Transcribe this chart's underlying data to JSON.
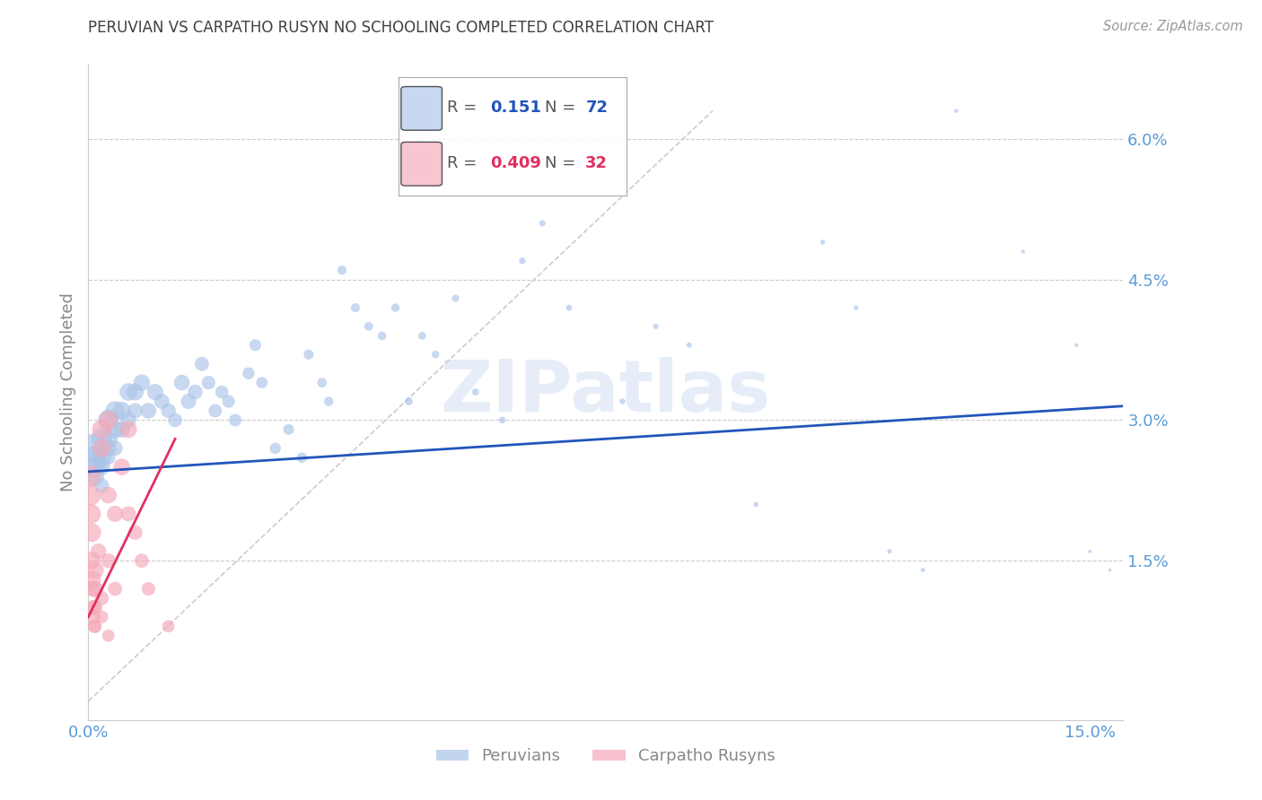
{
  "title": "PERUVIAN VS CARPATHO RUSYN NO SCHOOLING COMPLETED CORRELATION CHART",
  "source": "Source: ZipAtlas.com",
  "ylabel": "No Schooling Completed",
  "watermark": "ZIPatlas",
  "xlim": [
    0.0,
    0.155
  ],
  "ylim": [
    -0.002,
    0.068
  ],
  "blue_R": 0.151,
  "blue_N": 72,
  "pink_R": 0.409,
  "pink_N": 32,
  "blue_color": "#aac4e8",
  "pink_color": "#f4a8b8",
  "blue_line_color": "#2255bb",
  "pink_line_color": "#e03060",
  "dashed_line_color": "#cccccc",
  "grid_color": "#cccccc",
  "title_color": "#404040",
  "axis_label_color": "#888888",
  "tick_label_color": "#5b9bd5",
  "blue_line_x": [
    0.0,
    0.155
  ],
  "blue_line_y": [
    0.0245,
    0.0315
  ],
  "pink_line_x": [
    0.0,
    0.013
  ],
  "pink_line_y": [
    0.009,
    0.028
  ],
  "dash_line_x": [
    0.0,
    0.0935
  ],
  "dash_line_y": [
    0.0,
    0.063
  ],
  "blue_points": [
    [
      0.0005,
      0.027
    ],
    [
      0.001,
      0.026
    ],
    [
      0.001,
      0.025
    ],
    [
      0.001,
      0.024
    ],
    [
      0.002,
      0.028
    ],
    [
      0.002,
      0.026
    ],
    [
      0.002,
      0.025
    ],
    [
      0.002,
      0.023
    ],
    [
      0.003,
      0.03
    ],
    [
      0.003,
      0.028
    ],
    [
      0.003,
      0.027
    ],
    [
      0.003,
      0.026
    ],
    [
      0.004,
      0.031
    ],
    [
      0.004,
      0.029
    ],
    [
      0.004,
      0.027
    ],
    [
      0.005,
      0.031
    ],
    [
      0.005,
      0.029
    ],
    [
      0.006,
      0.033
    ],
    [
      0.006,
      0.03
    ],
    [
      0.007,
      0.033
    ],
    [
      0.007,
      0.031
    ],
    [
      0.008,
      0.034
    ],
    [
      0.009,
      0.031
    ],
    [
      0.01,
      0.033
    ],
    [
      0.011,
      0.032
    ],
    [
      0.012,
      0.031
    ],
    [
      0.013,
      0.03
    ],
    [
      0.014,
      0.034
    ],
    [
      0.015,
      0.032
    ],
    [
      0.016,
      0.033
    ],
    [
      0.017,
      0.036
    ],
    [
      0.018,
      0.034
    ],
    [
      0.019,
      0.031
    ],
    [
      0.02,
      0.033
    ],
    [
      0.021,
      0.032
    ],
    [
      0.022,
      0.03
    ],
    [
      0.024,
      0.035
    ],
    [
      0.025,
      0.038
    ],
    [
      0.026,
      0.034
    ],
    [
      0.028,
      0.027
    ],
    [
      0.03,
      0.029
    ],
    [
      0.032,
      0.026
    ],
    [
      0.033,
      0.037
    ],
    [
      0.035,
      0.034
    ],
    [
      0.036,
      0.032
    ],
    [
      0.038,
      0.046
    ],
    [
      0.04,
      0.042
    ],
    [
      0.042,
      0.04
    ],
    [
      0.044,
      0.039
    ],
    [
      0.046,
      0.042
    ],
    [
      0.048,
      0.032
    ],
    [
      0.05,
      0.039
    ],
    [
      0.052,
      0.037
    ],
    [
      0.055,
      0.043
    ],
    [
      0.058,
      0.033
    ],
    [
      0.062,
      0.03
    ],
    [
      0.065,
      0.047
    ],
    [
      0.068,
      0.051
    ],
    [
      0.072,
      0.042
    ],
    [
      0.08,
      0.032
    ],
    [
      0.085,
      0.04
    ],
    [
      0.09,
      0.038
    ],
    [
      0.1,
      0.021
    ],
    [
      0.11,
      0.049
    ],
    [
      0.115,
      0.042
    ],
    [
      0.12,
      0.016
    ],
    [
      0.125,
      0.014
    ],
    [
      0.13,
      0.063
    ],
    [
      0.14,
      0.048
    ],
    [
      0.148,
      0.038
    ],
    [
      0.15,
      0.016
    ],
    [
      0.153,
      0.014
    ]
  ],
  "pink_points": [
    [
      0.0002,
      0.024
    ],
    [
      0.0003,
      0.022
    ],
    [
      0.0004,
      0.02
    ],
    [
      0.0005,
      0.018
    ],
    [
      0.0005,
      0.015
    ],
    [
      0.0006,
      0.013
    ],
    [
      0.0007,
      0.012
    ],
    [
      0.0007,
      0.01
    ],
    [
      0.0008,
      0.009
    ],
    [
      0.0009,
      0.008
    ],
    [
      0.001,
      0.014
    ],
    [
      0.001,
      0.012
    ],
    [
      0.001,
      0.01
    ],
    [
      0.001,
      0.008
    ],
    [
      0.0015,
      0.016
    ],
    [
      0.002,
      0.029
    ],
    [
      0.002,
      0.027
    ],
    [
      0.002,
      0.011
    ],
    [
      0.002,
      0.009
    ],
    [
      0.003,
      0.03
    ],
    [
      0.003,
      0.022
    ],
    [
      0.003,
      0.015
    ],
    [
      0.003,
      0.007
    ],
    [
      0.004,
      0.02
    ],
    [
      0.004,
      0.012
    ],
    [
      0.005,
      0.025
    ],
    [
      0.006,
      0.029
    ],
    [
      0.006,
      0.02
    ],
    [
      0.007,
      0.018
    ],
    [
      0.008,
      0.015
    ],
    [
      0.009,
      0.012
    ],
    [
      0.012,
      0.008
    ]
  ],
  "blue_sizes": [
    500,
    350,
    280,
    220,
    300,
    240,
    180,
    140,
    280,
    220,
    170,
    130,
    240,
    190,
    150,
    210,
    170,
    200,
    160,
    190,
    150,
    180,
    160,
    170,
    150,
    140,
    130,
    160,
    150,
    140,
    130,
    120,
    115,
    110,
    105,
    100,
    95,
    90,
    85,
    80,
    75,
    70,
    65,
    60,
    58,
    55,
    52,
    50,
    48,
    45,
    42,
    40,
    38,
    35,
    32,
    30,
    28,
    26,
    24,
    22,
    20,
    18,
    16,
    15,
    14,
    13,
    12,
    11,
    10,
    9,
    8,
    7
  ],
  "pink_sizes": [
    300,
    280,
    250,
    230,
    210,
    190,
    170,
    150,
    130,
    110,
    200,
    170,
    140,
    120,
    160,
    240,
    210,
    130,
    110,
    230,
    180,
    140,
    100,
    170,
    130,
    180,
    190,
    150,
    140,
    130,
    120,
    100
  ]
}
